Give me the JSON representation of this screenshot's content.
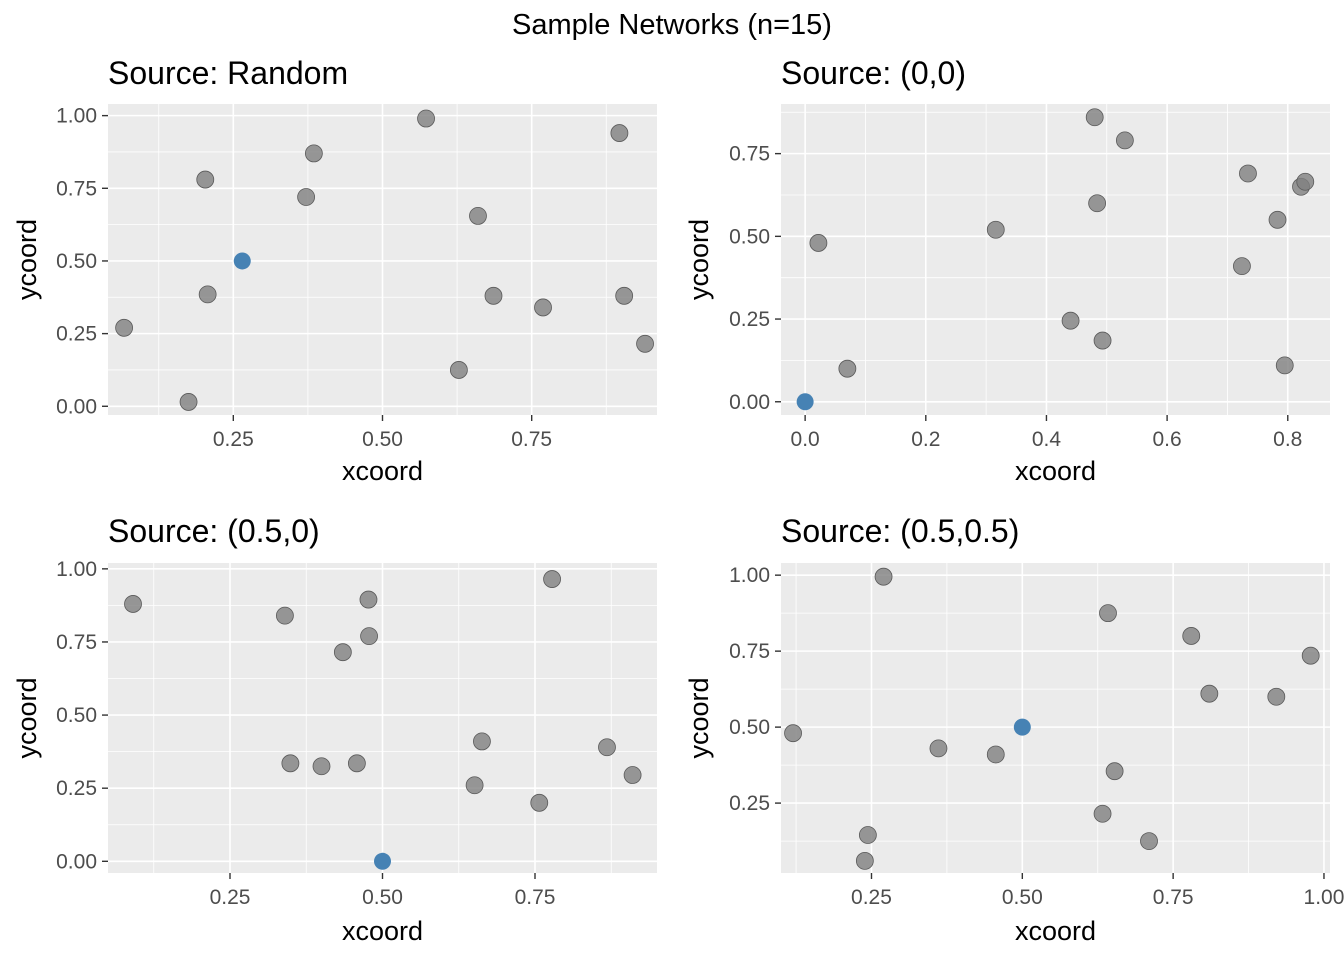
{
  "figure": {
    "title": "Sample Networks (n=15)",
    "point_color": "#808080",
    "point_stroke": "#5a5a5a",
    "source_color": "#4682b4"
  },
  "chart_data": [
    {
      "type": "scatter",
      "title": "Source: Random",
      "xlabel": "xcoord",
      "ylabel": "ycoord",
      "xlim": [
        0.04,
        0.96
      ],
      "ylim": [
        -0.03,
        1.04
      ],
      "xticks": [
        0.25,
        0.5,
        0.75
      ],
      "xtick_labels": [
        "0.25",
        "0.50",
        "0.75"
      ],
      "yticks": [
        0,
        0.25,
        0.5,
        0.75,
        1
      ],
      "ytick_labels": [
        "0.00",
        "0.25",
        "0.50",
        "0.75",
        "1.00"
      ],
      "grid": true,
      "source": {
        "x": 0.265,
        "y": 0.5
      },
      "points": [
        {
          "x": 0.573,
          "y": 0.99
        },
        {
          "x": 0.897,
          "y": 0.94
        },
        {
          "x": 0.385,
          "y": 0.87
        },
        {
          "x": 0.203,
          "y": 0.78
        },
        {
          "x": 0.372,
          "y": 0.72
        },
        {
          "x": 0.66,
          "y": 0.655
        },
        {
          "x": 0.207,
          "y": 0.385
        },
        {
          "x": 0.686,
          "y": 0.38
        },
        {
          "x": 0.905,
          "y": 0.38
        },
        {
          "x": 0.769,
          "y": 0.34
        },
        {
          "x": 0.067,
          "y": 0.27
        },
        {
          "x": 0.94,
          "y": 0.215
        },
        {
          "x": 0.628,
          "y": 0.125
        },
        {
          "x": 0.175,
          "y": 0.015
        }
      ]
    },
    {
      "type": "scatter",
      "title": "Source: (0,0)",
      "xlabel": "xcoord",
      "ylabel": "ycoord",
      "xlim": [
        -0.04,
        0.87
      ],
      "ylim": [
        -0.04,
        0.9
      ],
      "xticks": [
        0,
        0.2,
        0.4,
        0.6,
        0.8
      ],
      "xtick_labels": [
        "0.0",
        "0.2",
        "0.4",
        "0.6",
        "0.8"
      ],
      "yticks": [
        0,
        0.25,
        0.5,
        0.75
      ],
      "ytick_labels": [
        "0.00",
        "0.25",
        "0.50",
        "0.75"
      ],
      "grid": true,
      "source": {
        "x": 0.0,
        "y": 0.0
      },
      "points": [
        {
          "x": 0.48,
          "y": 0.86
        },
        {
          "x": 0.53,
          "y": 0.79
        },
        {
          "x": 0.734,
          "y": 0.69
        },
        {
          "x": 0.822,
          "y": 0.65
        },
        {
          "x": 0.829,
          "y": 0.665
        },
        {
          "x": 0.783,
          "y": 0.55
        },
        {
          "x": 0.484,
          "y": 0.6
        },
        {
          "x": 0.316,
          "y": 0.52
        },
        {
          "x": 0.022,
          "y": 0.48
        },
        {
          "x": 0.724,
          "y": 0.41
        },
        {
          "x": 0.44,
          "y": 0.245
        },
        {
          "x": 0.493,
          "y": 0.185
        },
        {
          "x": 0.07,
          "y": 0.1
        },
        {
          "x": 0.795,
          "y": 0.11
        }
      ]
    },
    {
      "type": "scatter",
      "title": "Source: (0.5,0)",
      "xlabel": "xcoord",
      "ylabel": "ycoord",
      "xlim": [
        0.05,
        0.95
      ],
      "ylim": [
        -0.04,
        1.02
      ],
      "xticks": [
        0.25,
        0.5,
        0.75
      ],
      "xtick_labels": [
        "0.25",
        "0.50",
        "0.75"
      ],
      "yticks": [
        0,
        0.25,
        0.5,
        0.75,
        1
      ],
      "ytick_labels": [
        "0.00",
        "0.25",
        "0.50",
        "0.75",
        "1.00"
      ],
      "grid": true,
      "source": {
        "x": 0.5,
        "y": 0.0
      },
      "points": [
        {
          "x": 0.778,
          "y": 0.965
        },
        {
          "x": 0.477,
          "y": 0.895
        },
        {
          "x": 0.091,
          "y": 0.88
        },
        {
          "x": 0.34,
          "y": 0.84
        },
        {
          "x": 0.478,
          "y": 0.77
        },
        {
          "x": 0.435,
          "y": 0.715
        },
        {
          "x": 0.663,
          "y": 0.41
        },
        {
          "x": 0.868,
          "y": 0.39
        },
        {
          "x": 0.349,
          "y": 0.335
        },
        {
          "x": 0.4,
          "y": 0.325
        },
        {
          "x": 0.458,
          "y": 0.335
        },
        {
          "x": 0.91,
          "y": 0.295
        },
        {
          "x": 0.651,
          "y": 0.26
        },
        {
          "x": 0.757,
          "y": 0.2
        }
      ]
    },
    {
      "type": "scatter",
      "title": "Source: (0.5,0.5)",
      "xlabel": "xcoord",
      "ylabel": "ycoord",
      "xlim": [
        0.1,
        1.01
      ],
      "ylim": [
        0.02,
        1.04
      ],
      "xticks": [
        0.25,
        0.5,
        0.75,
        1
      ],
      "xtick_labels": [
        "0.25",
        "0.50",
        "0.75",
        "1.00"
      ],
      "yticks": [
        0.25,
        0.5,
        0.75,
        1
      ],
      "ytick_labels": [
        "0.25",
        "0.50",
        "0.75",
        "1.00"
      ],
      "grid": true,
      "source": {
        "x": 0.5,
        "y": 0.5
      },
      "points": [
        {
          "x": 0.27,
          "y": 0.995
        },
        {
          "x": 0.642,
          "y": 0.875
        },
        {
          "x": 0.78,
          "y": 0.8
        },
        {
          "x": 0.978,
          "y": 0.735
        },
        {
          "x": 0.81,
          "y": 0.61
        },
        {
          "x": 0.921,
          "y": 0.6
        },
        {
          "x": 0.12,
          "y": 0.48
        },
        {
          "x": 0.361,
          "y": 0.43
        },
        {
          "x": 0.456,
          "y": 0.41
        },
        {
          "x": 0.653,
          "y": 0.355
        },
        {
          "x": 0.633,
          "y": 0.215
        },
        {
          "x": 0.71,
          "y": 0.125
        },
        {
          "x": 0.244,
          "y": 0.145
        },
        {
          "x": 0.239,
          "y": 0.06
        }
      ]
    }
  ]
}
